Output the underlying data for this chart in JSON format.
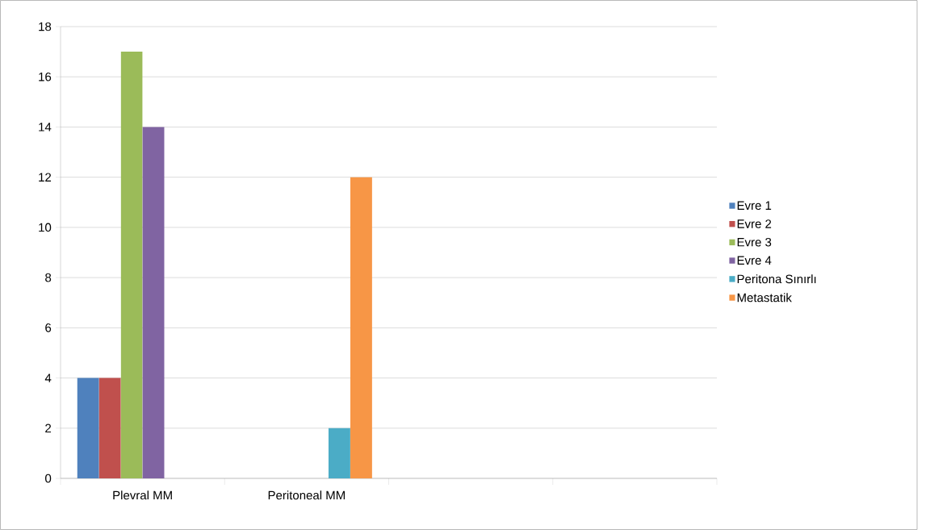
{
  "chart_data": {
    "type": "bar",
    "categories": [
      "Plevral MM",
      "Peritoneal MM",
      null,
      null
    ],
    "series": [
      {
        "name": "Evre 1",
        "color": "#4f81bd",
        "values": [
          4,
          null,
          null,
          null
        ]
      },
      {
        "name": "Evre 2",
        "color": "#c0504d",
        "values": [
          4,
          null,
          null,
          null
        ]
      },
      {
        "name": "Evre 3",
        "color": "#9bbb59",
        "values": [
          17,
          null,
          null,
          null
        ]
      },
      {
        "name": "Evre 4",
        "color": "#8064a2",
        "values": [
          14,
          null,
          null,
          null
        ]
      },
      {
        "name": "Peritona Sınırlı",
        "color": "#4bacc6",
        "values": [
          null,
          2,
          null,
          null
        ]
      },
      {
        "name": "Metastatik",
        "color": "#f79646",
        "values": [
          null,
          12,
          null,
          null
        ]
      }
    ],
    "ylim": [
      0,
      18
    ],
    "yticks": [
      0,
      2,
      4,
      6,
      8,
      10,
      12,
      14,
      16,
      18
    ],
    "grid": "y",
    "legend": "right"
  }
}
